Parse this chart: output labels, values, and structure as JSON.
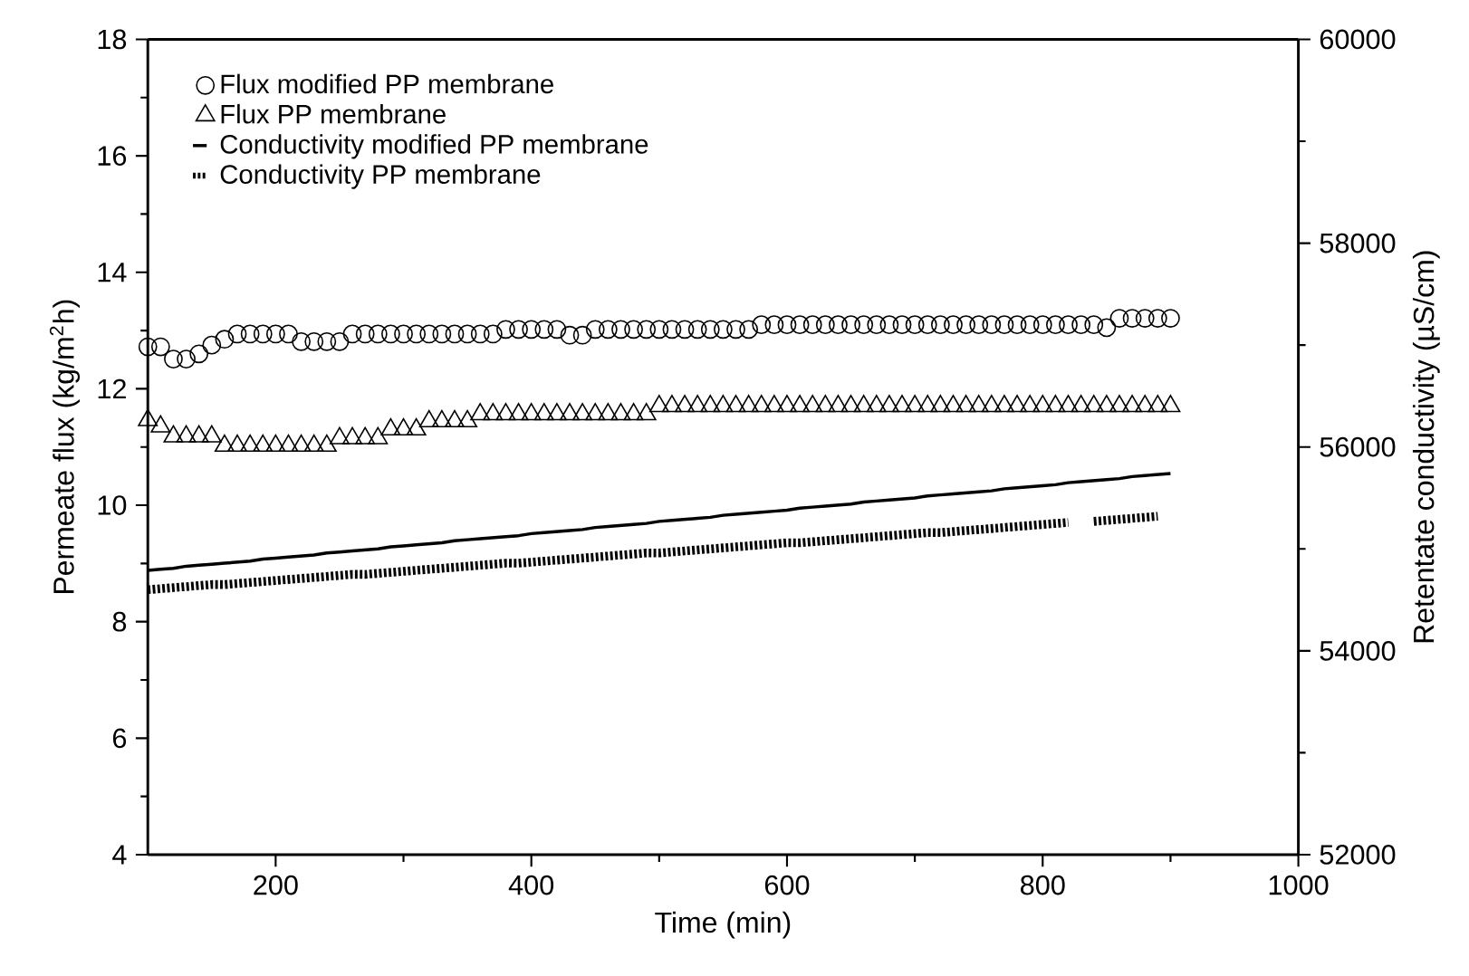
{
  "chart_data": {
    "type": "scatter",
    "xlabel": "Time (min)",
    "ylabel": "Permeate flux (kg/m$^{2}$h)",
    "y2label": "Retentate conductivity (µS/cm)",
    "xlim": [
      100,
      1000
    ],
    "xticks": [
      200,
      400,
      600,
      800,
      1000
    ],
    "ylim": [
      4,
      18
    ],
    "yticks": [
      4,
      6,
      8,
      10,
      12,
      14,
      16,
      18
    ],
    "y2lim": [
      52000,
      60000
    ],
    "y2ticks": [
      52000,
      54000,
      56000,
      58000,
      60000
    ],
    "legend": "top left",
    "grid": false,
    "series": [
      {
        "name": "Flux modified PP membrane",
        "marker": "circle",
        "color": "#000000",
        "x": [
          100,
          110,
          120,
          130,
          140,
          150,
          160,
          170,
          180,
          190,
          200,
          210,
          220,
          230,
          240,
          250,
          260,
          270,
          280,
          290,
          300,
          310,
          320,
          330,
          340,
          350,
          360,
          370,
          380,
          390,
          400,
          410,
          420,
          430,
          440,
          450,
          460,
          470,
          480,
          490,
          500,
          510,
          520,
          530,
          540,
          550,
          560,
          570,
          580,
          590,
          600,
          610,
          620,
          630,
          640,
          650,
          660,
          670,
          680,
          690,
          700,
          710,
          720,
          730,
          740,
          750,
          760,
          770,
          780,
          790,
          800,
          810,
          820,
          830,
          840,
          850,
          860,
          870,
          880,
          890,
          900
        ],
        "values": [
          12.72,
          12.72,
          12.51,
          12.51,
          12.6,
          12.75,
          12.85,
          12.94,
          12.94,
          12.94,
          12.94,
          12.94,
          12.81,
          12.81,
          12.81,
          12.81,
          12.94,
          12.94,
          12.94,
          12.94,
          12.94,
          12.94,
          12.94,
          12.94,
          12.94,
          12.94,
          12.94,
          12.94,
          13.02,
          13.02,
          13.02,
          13.02,
          13.02,
          12.92,
          12.92,
          13.02,
          13.02,
          13.02,
          13.02,
          13.02,
          13.02,
          13.02,
          13.02,
          13.02,
          13.02,
          13.02,
          13.02,
          13.02,
          13.1,
          13.1,
          13.1,
          13.1,
          13.1,
          13.1,
          13.1,
          13.1,
          13.1,
          13.1,
          13.1,
          13.1,
          13.1,
          13.1,
          13.1,
          13.1,
          13.1,
          13.1,
          13.1,
          13.1,
          13.1,
          13.1,
          13.1,
          13.1,
          13.1,
          13.1,
          13.1,
          13.05,
          13.21,
          13.21,
          13.21,
          13.21,
          13.21
        ]
      },
      {
        "name": "Flux PP membrane",
        "marker": "triangle",
        "color": "#000000",
        "x": [
          100,
          110,
          120,
          130,
          140,
          150,
          160,
          170,
          180,
          190,
          200,
          210,
          220,
          230,
          240,
          250,
          260,
          270,
          280,
          290,
          300,
          310,
          320,
          330,
          340,
          350,
          360,
          370,
          380,
          390,
          400,
          410,
          420,
          430,
          440,
          450,
          460,
          470,
          480,
          490,
          500,
          510,
          520,
          530,
          540,
          550,
          560,
          570,
          580,
          590,
          600,
          610,
          620,
          630,
          640,
          650,
          660,
          670,
          680,
          690,
          700,
          710,
          720,
          730,
          740,
          750,
          760,
          770,
          780,
          790,
          800,
          810,
          820,
          830,
          840,
          850,
          860,
          870,
          880,
          890,
          900
        ],
        "values": [
          11.46,
          11.35,
          11.18,
          11.18,
          11.18,
          11.18,
          11.02,
          11.02,
          11.02,
          11.02,
          11.02,
          11.02,
          11.02,
          11.02,
          11.02,
          11.15,
          11.15,
          11.15,
          11.15,
          11.3,
          11.3,
          11.3,
          11.44,
          11.44,
          11.44,
          11.44,
          11.56,
          11.56,
          11.56,
          11.56,
          11.56,
          11.56,
          11.56,
          11.56,
          11.56,
          11.56,
          11.56,
          11.56,
          11.56,
          11.56,
          11.7,
          11.7,
          11.7,
          11.7,
          11.7,
          11.7,
          11.7,
          11.7,
          11.7,
          11.7,
          11.7,
          11.7,
          11.7,
          11.7,
          11.7,
          11.7,
          11.7,
          11.7,
          11.7,
          11.7,
          11.7,
          11.7,
          11.7,
          11.7,
          11.7,
          11.7,
          11.7,
          11.7,
          11.7,
          11.7,
          11.7,
          11.7,
          11.7,
          11.7,
          11.7,
          11.7,
          11.7,
          11.7,
          11.7,
          11.7,
          11.7
        ]
      },
      {
        "name": "Conductivity modified PP membrane",
        "type": "line",
        "axis": "y2",
        "line_style": "solid",
        "marker": "none",
        "color": "#000000",
        "x": [
          100,
          110,
          120,
          130,
          140,
          150,
          160,
          170,
          180,
          190,
          200,
          210,
          220,
          230,
          240,
          250,
          260,
          270,
          280,
          290,
          300,
          310,
          320,
          330,
          340,
          350,
          360,
          370,
          380,
          390,
          400,
          410,
          420,
          430,
          440,
          450,
          460,
          470,
          480,
          490,
          500,
          510,
          520,
          530,
          540,
          550,
          560,
          570,
          580,
          590,
          600,
          610,
          620,
          630,
          640,
          650,
          660,
          670,
          680,
          690,
          700,
          710,
          720,
          730,
          740,
          750,
          760,
          770,
          780,
          790,
          800,
          810,
          820,
          830,
          840,
          850,
          860,
          870,
          880,
          890,
          900
        ],
        "values": [
          54790,
          54800,
          54810,
          54830,
          54840,
          54850,
          54860,
          54870,
          54880,
          54900,
          54910,
          54920,
          54930,
          54940,
          54960,
          54970,
          54980,
          54990,
          55000,
          55020,
          55030,
          55040,
          55050,
          55060,
          55080,
          55090,
          55100,
          55110,
          55120,
          55130,
          55150,
          55160,
          55170,
          55180,
          55190,
          55210,
          55220,
          55230,
          55240,
          55250,
          55270,
          55280,
          55290,
          55300,
          55310,
          55330,
          55340,
          55350,
          55360,
          55370,
          55380,
          55400,
          55410,
          55420,
          55430,
          55440,
          55460,
          55470,
          55480,
          55490,
          55500,
          55520,
          55530,
          55540,
          55550,
          55560,
          55570,
          55590,
          55600,
          55610,
          55620,
          55630,
          55650,
          55660,
          55670,
          55680,
          55690,
          55710,
          55720,
          55730,
          55740
        ]
      },
      {
        "name": "Conductivity PP membrane",
        "type": "line",
        "axis": "y2",
        "line_style": "dotted",
        "marker": "none",
        "color": "#000000",
        "x": [
          100,
          110,
          120,
          130,
          140,
          150,
          160,
          170,
          180,
          190,
          200,
          210,
          220,
          230,
          240,
          250,
          260,
          270,
          280,
          290,
          300,
          310,
          320,
          330,
          340,
          350,
          360,
          370,
          380,
          390,
          400,
          410,
          420,
          430,
          440,
          450,
          460,
          470,
          480,
          490,
          500,
          510,
          520,
          530,
          540,
          550,
          560,
          570,
          580,
          590,
          600,
          610,
          620,
          630,
          640,
          650,
          660,
          670,
          680,
          690,
          700,
          710,
          720,
          730,
          740,
          750,
          760,
          770,
          780,
          790,
          800,
          810,
          820,
          830,
          840,
          850,
          860,
          870,
          880,
          890
        ],
        "values": [
          54600,
          54610,
          54620,
          54630,
          54640,
          54650,
          54650,
          54660,
          54670,
          54680,
          54690,
          54700,
          54710,
          54720,
          54730,
          54740,
          54750,
          54750,
          54760,
          54770,
          54780,
          54790,
          54800,
          54810,
          54820,
          54830,
          54840,
          54850,
          54860,
          54860,
          54870,
          54880,
          54890,
          54900,
          54910,
          54920,
          54930,
          54940,
          54950,
          54960,
          54960,
          54970,
          54980,
          54990,
          55000,
          55010,
          55020,
          55030,
          55040,
          55050,
          55060,
          55060,
          55070,
          55080,
          55090,
          55100,
          55110,
          55120,
          55130,
          55140,
          55150,
          55160,
          55160,
          55170,
          55180,
          55190,
          55200,
          55210,
          55220,
          55230,
          55240,
          55250,
          55260,
          null,
          55270,
          55280,
          55290,
          55300,
          55310,
          55320
        ]
      }
    ]
  }
}
